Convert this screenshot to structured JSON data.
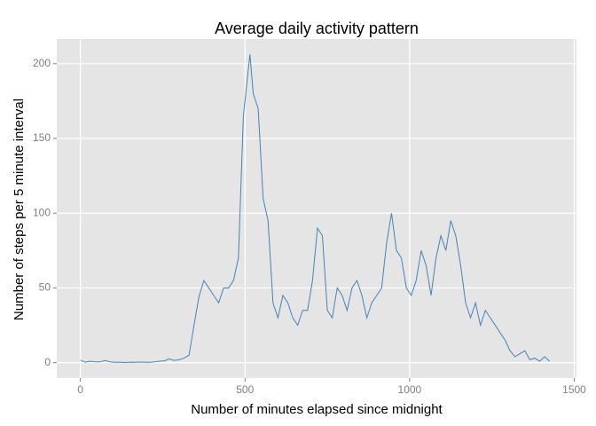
{
  "chart_data": {
    "type": "line",
    "title": "Average daily activity pattern",
    "x_label": "Number of minutes elapsed since midnight",
    "y_label": "Number of steps per 5 minute interval",
    "x": [
      0,
      15,
      30,
      45,
      60,
      75,
      90,
      105,
      120,
      135,
      150,
      165,
      180,
      195,
      210,
      225,
      240,
      255,
      270,
      285,
      300,
      315,
      330,
      345,
      360,
      375,
      390,
      405,
      420,
      435,
      450,
      465,
      480,
      495,
      515,
      525,
      540,
      555,
      570,
      585,
      600,
      615,
      630,
      645,
      660,
      675,
      690,
      705,
      720,
      735,
      750,
      765,
      780,
      795,
      810,
      825,
      840,
      855,
      870,
      885,
      900,
      915,
      930,
      945,
      960,
      975,
      990,
      1005,
      1020,
      1035,
      1050,
      1065,
      1080,
      1095,
      1110,
      1125,
      1140,
      1155,
      1170,
      1185,
      1200,
      1215,
      1230,
      1245,
      1260,
      1275,
      1290,
      1305,
      1320,
      1335,
      1350,
      1365,
      1380,
      1395,
      1410,
      1425
    ],
    "series": [
      {
        "name": "steps",
        "color": "#4682b4",
        "values": [
          1.7,
          0.3,
          1.0,
          0.5,
          0.5,
          1.5,
          0.5,
          0.2,
          0.3,
          0.1,
          0.3,
          0.2,
          0.4,
          0.3,
          0.2,
          0.5,
          1.0,
          1.2,
          2.5,
          1.5,
          2.0,
          3.0,
          5.0,
          25,
          44,
          55,
          50,
          45,
          40,
          50,
          50,
          55,
          70,
          165,
          206.2,
          180,
          170,
          110,
          95,
          40,
          30,
          45,
          40,
          30,
          25,
          35,
          35,
          55,
          90,
          85,
          35,
          30,
          50,
          45,
          35,
          50,
          55,
          45,
          30,
          40,
          45,
          50,
          80,
          100,
          75,
          70,
          50,
          45,
          55,
          75,
          65,
          45,
          70,
          85,
          75,
          95,
          85,
          65,
          40,
          30,
          40,
          25,
          35,
          30,
          25,
          20,
          15,
          8,
          4,
          6,
          8,
          2,
          3,
          1,
          4,
          1
        ]
      }
    ],
    "xlim": [
      -71.75,
      1506.75
    ],
    "ylim": [
      -10.3,
      216.5
    ],
    "xticks": [
      0,
      500,
      1000,
      1500
    ],
    "yticks": [
      0,
      50,
      100,
      150,
      200
    ],
    "grid": true,
    "panel_color": "#e5e5e5"
  }
}
